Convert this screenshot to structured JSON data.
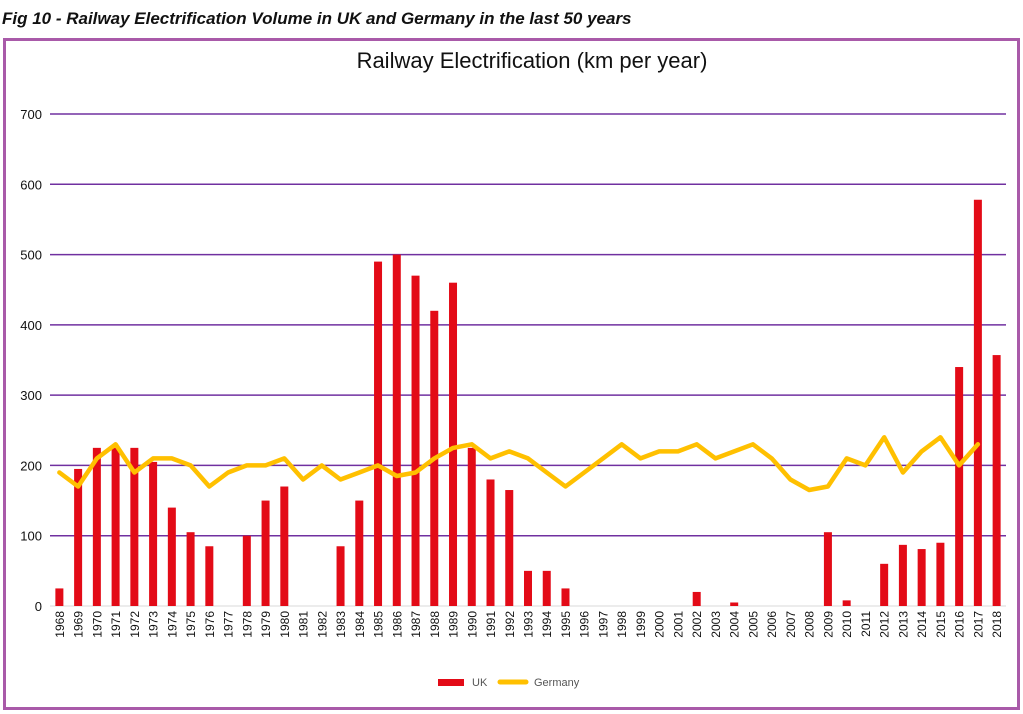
{
  "caption": "Fig 10 - Railway Electrification Volume in UK and Germany in the last 50 years",
  "colors": {
    "uk": "#e30b17",
    "germany": "#ffc000",
    "grid": "#7030a0",
    "frame": "#a95aa9"
  },
  "chart_data": {
    "type": "bar+line",
    "title": "Railway Electrification (km per year)",
    "xlabel": "",
    "ylabel": "",
    "ylim": [
      0,
      700
    ],
    "yticks": [
      0,
      100,
      200,
      300,
      400,
      500,
      600,
      700
    ],
    "grid": true,
    "legend_position": "bottom",
    "categories": [
      "1968",
      "1969",
      "1970",
      "1971",
      "1972",
      "1973",
      "1974",
      "1975",
      "1976",
      "1977",
      "1978",
      "1979",
      "1980",
      "1981",
      "1982",
      "1983",
      "1984",
      "1985",
      "1986",
      "1987",
      "1988",
      "1989",
      "1990",
      "1991",
      "1992",
      "1993",
      "1994",
      "1995",
      "1996",
      "1997",
      "1998",
      "1999",
      "2000",
      "2001",
      "2002",
      "2003",
      "2004",
      "2005",
      "2006",
      "2007",
      "2008",
      "2009",
      "2010",
      "2011",
      "2012",
      "2013",
      "2014",
      "2015",
      "2016",
      "2017",
      "2018"
    ],
    "series": [
      {
        "name": "UK",
        "type": "bar",
        "values": [
          25,
          195,
          225,
          225,
          225,
          205,
          140,
          105,
          85,
          0,
          100,
          150,
          170,
          0,
          0,
          85,
          150,
          490,
          500,
          470,
          420,
          460,
          225,
          180,
          165,
          50,
          50,
          25,
          0,
          0,
          0,
          0,
          0,
          0,
          20,
          0,
          5,
          0,
          0,
          0,
          0,
          105,
          8,
          0,
          60,
          87,
          81,
          90,
          340,
          578,
          357
        ]
      },
      {
        "name": "Germany",
        "type": "line",
        "values": [
          190,
          170,
          210,
          230,
          190,
          210,
          210,
          200,
          170,
          190,
          200,
          200,
          210,
          180,
          200,
          180,
          190,
          200,
          185,
          190,
          210,
          225,
          230,
          210,
          220,
          210,
          190,
          170,
          190,
          210,
          230,
          210,
          220,
          220,
          230,
          210,
          220,
          230,
          210,
          180,
          165,
          170,
          210,
          200,
          240,
          190,
          220,
          240,
          200,
          230,
          null
        ]
      }
    ]
  }
}
